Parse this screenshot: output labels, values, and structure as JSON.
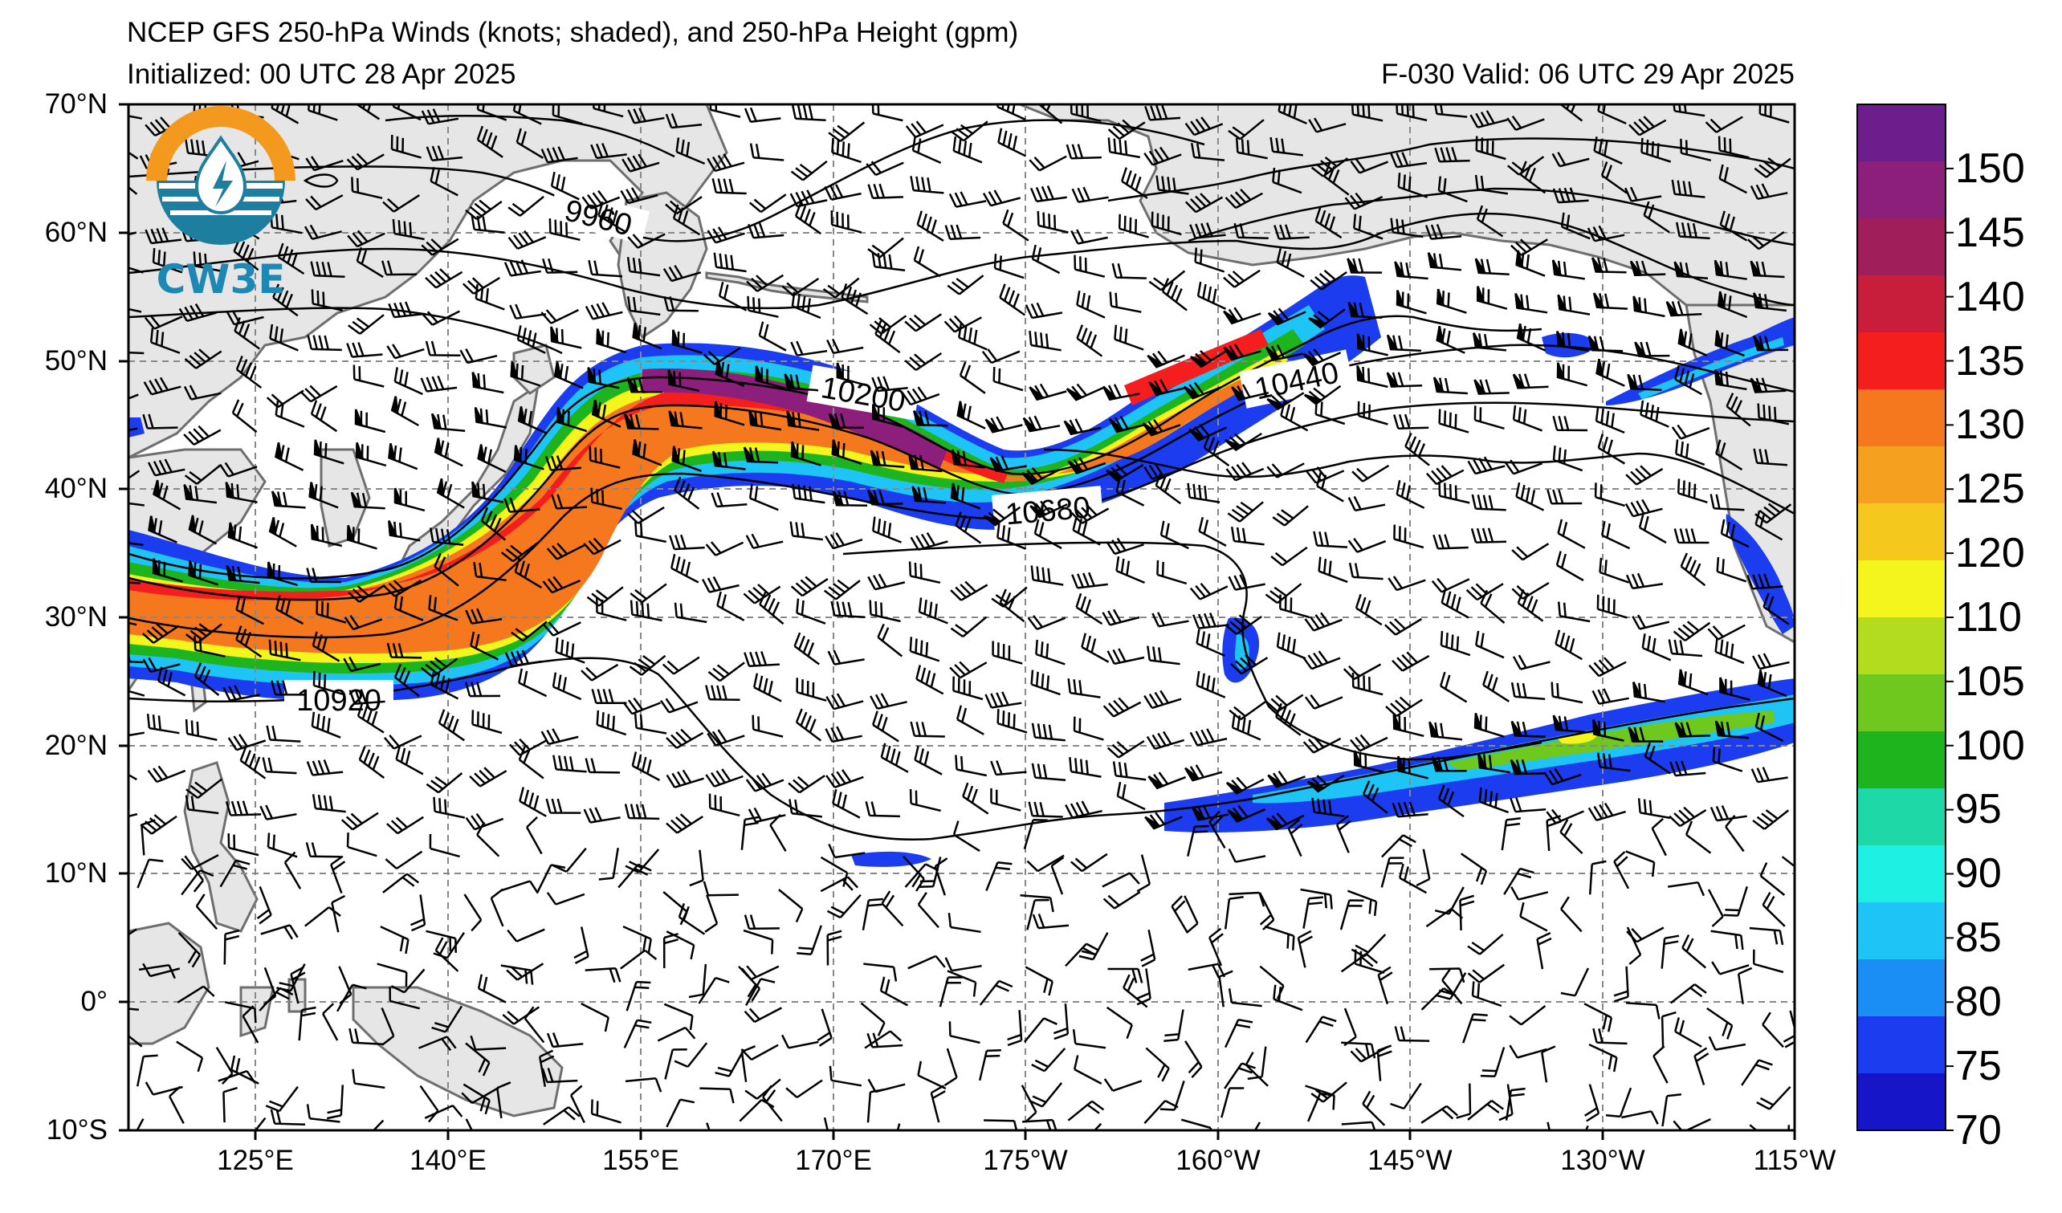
{
  "title_line1": "NCEP GFS 250-hPa Winds (knots; shaded), and 250-hPa Height (gpm)",
  "title_line2_left": "Initialized: 00 UTC 28 Apr 2025",
  "title_line2_right": "F-030  Valid: 06 UTC 29 Apr 2025",
  "logo_text": "CW3E",
  "lat_labels": [
    "70°N",
    "60°N",
    "50°N",
    "40°N",
    "30°N",
    "20°N",
    "10°N",
    "0°",
    "10°S"
  ],
  "lon_labels": [
    "125°E",
    "140°E",
    "155°E",
    "170°E",
    "175°W",
    "160°W",
    "145°W",
    "130°W",
    "115°W"
  ],
  "colorbar": {
    "tick_labels": [
      "70",
      "75",
      "80",
      "85",
      "90",
      "95",
      "100",
      "105",
      "110",
      "120",
      "125",
      "130",
      "135",
      "140",
      "145",
      "150"
    ],
    "colors": [
      "#1616c8",
      "#1c3cf0",
      "#1a8ef5",
      "#1ec4f5",
      "#1ef0e4",
      "#1ed8a8",
      "#1eb41e",
      "#6ec81e",
      "#b4dc1e",
      "#f5f51e",
      "#f5c81e",
      "#f5a01e",
      "#f5781e",
      "#f51e1e",
      "#c81e3c",
      "#a01e5a",
      "#8c1e7c",
      "#6e1e8c"
    ]
  },
  "contour_labels": [
    "9960",
    "10200",
    "10440",
    "10680",
    "10920"
  ],
  "map_elements": {
    "shading_meaning": "250-hPa wind speed (knots)",
    "contours_meaning": "250-hPa height (gpm)",
    "barbs": "wind barbs",
    "land_color": "#e6e6e6",
    "coast_color": "#6e6e6e",
    "grid_style": "dashed gray"
  }
}
